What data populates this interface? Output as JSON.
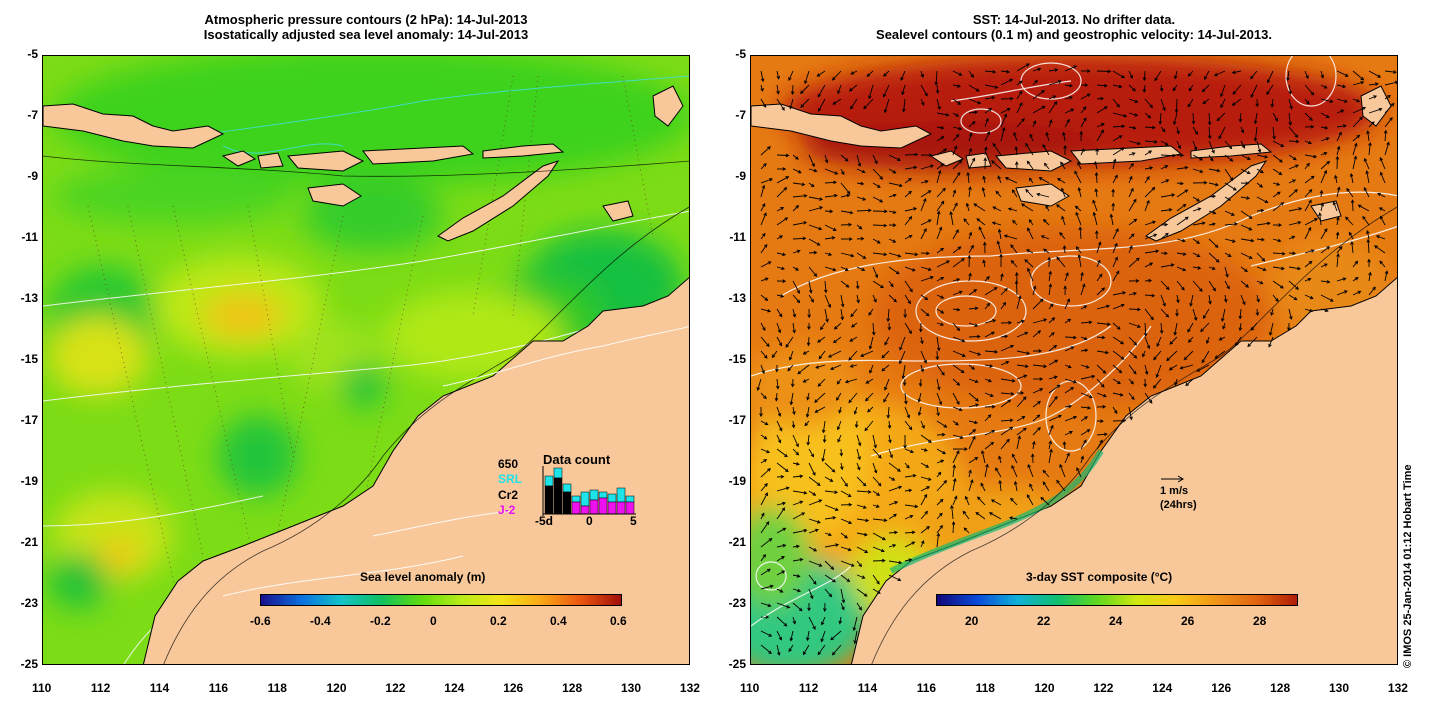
{
  "left_panel": {
    "title_line1": "Atmospheric pressure contours (2 hPa): 14-Jul-2013",
    "title_line2": "Isostatically adjusted sea level anomaly: 14-Jul-2013",
    "colorbar_title": "Sea level anomaly (m)",
    "colorbar_ticks": [
      "-0.6",
      "-0.4",
      "-0.2",
      "0",
      "0.2",
      "0.4",
      "0.6"
    ],
    "data_count": {
      "title": "Data count",
      "max_label": "650",
      "series_labels": [
        "SRL",
        "Cr2",
        "J-2"
      ],
      "series_colors": [
        "#1ee3e8",
        "#000000",
        "#ee10ee"
      ],
      "axis_labels": [
        "-5d",
        "0",
        "5"
      ]
    }
  },
  "right_panel": {
    "title_line1": "SST: 14-Jul-2013. No drifter data.",
    "title_line2": "Sealevel contours (0.1 m) and geostrophic velocity: 14-Jul-2013.",
    "colorbar_title": "3-day SST composite (°C)",
    "colorbar_ticks": [
      "20",
      "22",
      "24",
      "26",
      "28"
    ],
    "scale_arrow": {
      "line1": "1 m/s",
      "line2": "(24hrs)"
    }
  },
  "axes": {
    "lat_ticks": [
      "-5",
      "-7",
      "-9",
      "-11",
      "-13",
      "-15",
      "-17",
      "-19",
      "-21",
      "-23",
      "-25"
    ],
    "lon_ticks": [
      "110",
      "112",
      "114",
      "116",
      "118",
      "120",
      "122",
      "124",
      "126",
      "128",
      "130",
      "132"
    ]
  },
  "credit": "© IMOS 25-Jan-2014 01:12 Hobart Time",
  "colors": {
    "land": "#f8c89b",
    "sla_colormap": [
      "#1a0f8c",
      "#0a6fe0",
      "#12c3c9",
      "#10c060",
      "#5fdc10",
      "#b8ec18",
      "#f4e418",
      "#f9a818",
      "#ea5410",
      "#a01008"
    ],
    "sst_colormap": [
      "#100878",
      "#0a48d8",
      "#10b0d8",
      "#10c070",
      "#60d820",
      "#d0e810",
      "#f8c818",
      "#f09418",
      "#e06410",
      "#b01c08"
    ]
  }
}
